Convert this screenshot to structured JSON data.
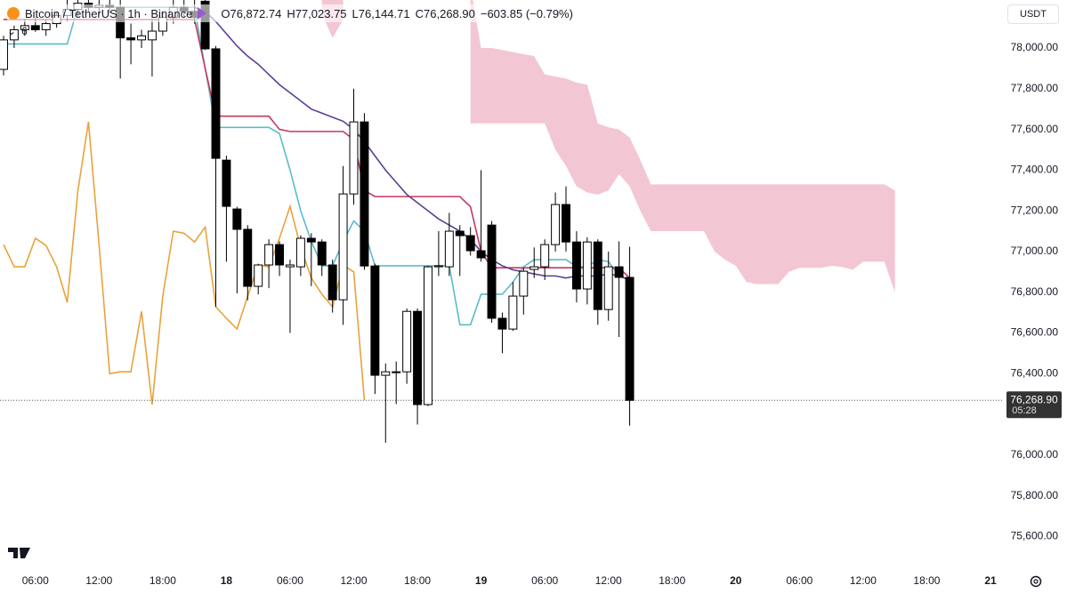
{
  "header": {
    "symbol": "Bitcoin / TetherUS · 1h · Binance",
    "open": "O76,872.74",
    "high": "H77,023.75",
    "low": "L76,144.71",
    "close": "C76,268.90",
    "change": "−603.85 (−0.79%)"
  },
  "toolbar": {
    "currency": "USDT",
    "indicator_count": "6"
  },
  "chart_data": {
    "type": "candlestick",
    "categories": [
      null,
      null,
      null,
      "06:00",
      null,
      null,
      null,
      null,
      null,
      "12:00",
      null,
      null,
      null,
      null,
      null,
      "18:00",
      null,
      null,
      null,
      null,
      null,
      "18",
      null,
      null,
      null,
      null,
      null,
      "06:00",
      null,
      null,
      null,
      null,
      null,
      "12:00",
      null,
      null,
      null,
      null,
      null,
      "18:00",
      null,
      null,
      null,
      null,
      null,
      "19",
      null,
      null,
      null,
      null,
      null,
      "06:00",
      null,
      null,
      null,
      null,
      null,
      "12:00",
      null,
      null,
      null,
      null,
      null,
      "18:00",
      null,
      null,
      null,
      null,
      null,
      "20",
      null,
      null,
      null,
      null,
      null,
      "06:00",
      null,
      null,
      null,
      null,
      null,
      "12:00",
      null,
      null,
      null,
      null,
      null,
      "18:00",
      null,
      null,
      null,
      null,
      null,
      "21"
    ],
    "open": [
      77895,
      78040,
      78090,
      78110,
      78090,
      78120,
      78160,
      78190,
      78220,
      78200,
      78210,
      78200,
      78050,
      78040,
      78040,
      78083,
      78150,
      78200,
      78180,
      78230,
      77996,
      77449,
      77209,
      77109,
      76829,
      76934,
      77034,
      76925,
      76925,
      77065,
      77047,
      76934,
      76763,
      77283,
      77637,
      76929,
      76392,
      76409,
      76409,
      76706,
      76248,
      76925,
      76925,
      77100,
      77078,
      77004,
      77130,
      76672,
      76619,
      76781,
      76912,
      76925,
      77034,
      77231,
      77047,
      76816,
      77047,
      76715,
      76925,
      76872.74,
      null,
      null,
      null,
      null,
      null,
      null,
      null,
      null,
      null,
      null,
      null,
      null,
      null,
      null,
      null,
      null,
      null,
      null,
      null,
      null,
      null,
      null,
      null,
      null,
      null,
      null,
      null,
      null,
      null,
      null,
      null,
      null,
      null,
      null
    ],
    "high": [
      78060,
      78110,
      78140,
      78150,
      78140,
      78180,
      78236,
      78236,
      78236,
      78236,
      78236,
      78236,
      78120,
      78090,
      78140,
      78180,
      78236,
      78236,
      78236,
      78236,
      78010,
      77471,
      77220,
      77130,
      76940,
      77060,
      77050,
      76960,
      77080,
      77090,
      77060,
      76960,
      77420,
      77800,
      77680,
      76940,
      76450,
      76460,
      76720,
      76720,
      76930,
      77100,
      77190,
      77130,
      77120,
      77400,
      77150,
      76700,
      76850,
      76920,
      77020,
      77060,
      77290,
      77320,
      77100,
      77070,
      77060,
      77000,
      77050,
      77023.75,
      null,
      null,
      null,
      null,
      null,
      null,
      null,
      null,
      null,
      null,
      null,
      null,
      null,
      null,
      null,
      null,
      null,
      null,
      null,
      null,
      null,
      null,
      null,
      null,
      null,
      null,
      null,
      null,
      null,
      null,
      null,
      null,
      null,
      null
    ],
    "low": [
      77865,
      78000,
      78060,
      78080,
      78060,
      78100,
      78130,
      78150,
      78180,
      78160,
      78170,
      77850,
      77920,
      78000,
      77860,
      78060,
      78120,
      78150,
      78120,
      77990,
      76728,
      76950,
      76794,
      76760,
      76790,
      76820,
      76880,
      76600,
      76880,
      76830,
      76880,
      76700,
      76640,
      77230,
      76910,
      76300,
      76060,
      76250,
      76350,
      76150,
      76240,
      76880,
      76880,
      76880,
      76980,
      76950,
      76650,
      76500,
      76610,
      76690,
      76870,
      76860,
      77000,
      77000,
      76750,
      76740,
      76640,
      76660,
      76580,
      76144.71,
      null,
      null,
      null,
      null,
      null,
      null,
      null,
      null,
      null,
      null,
      null,
      null,
      null,
      null,
      null,
      null,
      null,
      null,
      null,
      null,
      null,
      null,
      null,
      null,
      null,
      null,
      null,
      null,
      null,
      null,
      null,
      null,
      null,
      null
    ],
    "close": [
      78040,
      78090,
      78110,
      78090,
      78120,
      78160,
      78190,
      78220,
      78200,
      78210,
      78200,
      78050,
      78040,
      78060,
      78083,
      78150,
      78200,
      78180,
      78150,
      77996,
      77458,
      77222,
      77109,
      76829,
      76934,
      77034,
      76934,
      76934,
      77065,
      77047,
      76934,
      76763,
      77283,
      77637,
      76929,
      76392,
      76409,
      76409,
      76706,
      76248,
      76925,
      76930,
      77100,
      77078,
      77004,
      76969,
      76672,
      76619,
      76781,
      76903,
      76925,
      77034,
      77231,
      77047,
      76816,
      77047,
      76715,
      76925,
      76873,
      76268.9,
      null,
      null,
      null,
      null,
      null,
      null,
      null,
      null,
      null,
      null,
      null,
      null,
      null,
      null,
      null,
      null,
      null,
      null,
      null,
      null,
      null,
      null,
      null,
      null,
      null,
      null,
      null,
      null,
      null,
      null,
      null,
      null,
      null,
      null
    ],
    "up_color": "#ffffff",
    "down_color": "#000000",
    "lines": [
      {
        "color": "#5bbcc9",
        "values": [
          78020,
          78020,
          78020,
          78020,
          78020,
          78020,
          78020,
          78200,
          78200,
          78200,
          78200,
          78200,
          78200,
          78200,
          78200,
          78200,
          78200,
          78200,
          78200,
          77900,
          77610,
          77610,
          77610,
          77610,
          77610,
          77610,
          77580,
          77400,
          77200,
          77050,
          76930,
          76930,
          77050,
          77150,
          77100,
          76930,
          76930,
          76930,
          76930,
          76930,
          76930,
          76930,
          76930,
          76640,
          76640,
          76790,
          76790,
          76790,
          76850,
          76925,
          76960,
          76960,
          76960,
          76960,
          76925,
          76925,
          76960,
          76950,
          76880,
          76860,
          null,
          null,
          null,
          null,
          null,
          null,
          null,
          null,
          null,
          null,
          null,
          null,
          null,
          null,
          null,
          null,
          null,
          null,
          null,
          null,
          null,
          null,
          null,
          null,
          null,
          null,
          null,
          null,
          null,
          null,
          null,
          null,
          null,
          null
        ]
      },
      {
        "color": "#c8375d",
        "values": [
          78140,
          78140,
          78140,
          78140,
          78140,
          78140,
          78140,
          78140,
          78140,
          78140,
          78140,
          78140,
          78140,
          78140,
          78140,
          78140,
          78140,
          78140,
          78140,
          77900,
          77665,
          77665,
          77665,
          77665,
          77665,
          77665,
          77600,
          77590,
          77590,
          77590,
          77590,
          77590,
          77590,
          77550,
          77300,
          77270,
          77270,
          77270,
          77270,
          77270,
          77270,
          77270,
          77270,
          77270,
          77220,
          77000,
          76920,
          76920,
          76920,
          76920,
          76920,
          76920,
          76920,
          76920,
          76920,
          76920,
          76920,
          76920,
          76920,
          76870,
          null,
          null,
          null,
          null,
          null,
          null,
          null,
          null,
          null,
          null,
          null,
          null,
          null,
          null,
          null,
          null,
          null,
          null,
          null,
          null,
          null,
          null,
          null,
          null,
          null,
          null,
          null,
          null,
          null,
          null,
          null,
          null,
          null,
          null
        ]
      },
      {
        "color": "#5b3e96",
        "values": [
          null,
          null,
          null,
          null,
          null,
          null,
          null,
          null,
          null,
          null,
          null,
          null,
          null,
          null,
          null,
          null,
          null,
          null,
          78200,
          78180,
          78130,
          78070,
          78010,
          77960,
          77920,
          77870,
          77820,
          77780,
          77740,
          77700,
          77680,
          77660,
          77640,
          77600,
          77540,
          77470,
          77400,
          77340,
          77280,
          77240,
          77200,
          77160,
          77130,
          77100,
          77060,
          77000,
          76960,
          76930,
          76910,
          76900,
          76890,
          76880,
          76880,
          76870,
          76880,
          76880,
          76880,
          76890,
          76880,
          76860,
          null,
          null,
          null,
          null,
          null,
          null,
          null,
          null,
          null,
          null,
          null,
          null,
          null,
          null,
          null,
          null,
          null,
          null,
          null,
          null,
          null,
          null,
          null,
          null,
          null,
          null,
          null,
          null,
          null,
          null,
          null,
          null,
          null,
          null
        ]
      },
      {
        "color": "#e8a33d",
        "values": [
          77034,
          76925,
          76925,
          77065,
          77030,
          76925,
          76750,
          77297,
          77637,
          77034,
          76400,
          76409,
          76409,
          76706,
          76248,
          76780,
          77100,
          77090,
          77047,
          77120,
          76728,
          76672,
          76619,
          76780,
          76934,
          76925,
          77065,
          77222,
          77020,
          76870,
          76790,
          76728,
          76934,
          76900,
          76269,
          null,
          null,
          null,
          null,
          null,
          null,
          null,
          null,
          null,
          null,
          null,
          null,
          null,
          null,
          null,
          null,
          null,
          null,
          null,
          null,
          null,
          null,
          null,
          null,
          null,
          null,
          null,
          null,
          null,
          null,
          null,
          null,
          null,
          null,
          null,
          null,
          null,
          null,
          null,
          null,
          null,
          null,
          null,
          null,
          null,
          null,
          null,
          null,
          null,
          null,
          null,
          null,
          null,
          null,
          null,
          null,
          null,
          null,
          null
        ]
      }
    ],
    "cloud": {
      "color": "#f3c6d4",
      "upper": [
        null,
        null,
        null,
        null,
        null,
        null,
        null,
        null,
        null,
        null,
        null,
        null,
        null,
        null,
        null,
        null,
        null,
        null,
        null,
        null,
        null,
        null,
        null,
        null,
        null,
        null,
        null,
        null,
        null,
        null,
        78300,
        78300,
        78300,
        null,
        null,
        null,
        null,
        null,
        null,
        null,
        null,
        null,
        null,
        null,
        78300,
        78000,
        78000,
        77990,
        77980,
        77970,
        77960,
        77870,
        77860,
        77850,
        77830,
        77820,
        77630,
        77610,
        77600,
        77560,
        77450,
        77330,
        77330,
        77330,
        77330,
        77330,
        77330,
        77330,
        77330,
        77330,
        77330,
        77330,
        77330,
        77330,
        77330,
        77330,
        77330,
        77330,
        77330,
        77330,
        77330,
        77330,
        77330,
        77330,
        77300,
        null,
        null,
        null,
        null,
        null,
        null,
        null,
        null,
        null
      ],
      "lower": [
        null,
        null,
        null,
        null,
        null,
        null,
        null,
        null,
        null,
        null,
        null,
        null,
        null,
        null,
        null,
        null,
        null,
        null,
        null,
        null,
        null,
        null,
        null,
        null,
        null,
        null,
        null,
        null,
        null,
        null,
        78170,
        78050,
        78140,
        null,
        null,
        null,
        null,
        null,
        null,
        null,
        null,
        null,
        null,
        null,
        77630,
        77630,
        77630,
        77630,
        77630,
        77630,
        77630,
        77630,
        77500,
        77420,
        77320,
        77290,
        77280,
        77300,
        77380,
        77320,
        77200,
        77100,
        77100,
        77100,
        77100,
        77100,
        77100,
        77000,
        76960,
        76930,
        76850,
        76840,
        76840,
        76840,
        76900,
        76920,
        76920,
        76920,
        76930,
        76925,
        76910,
        76950,
        76950,
        76950,
        76800,
        null,
        null,
        null,
        null,
        null,
        null,
        null,
        null,
        null
      ]
    },
    "last_price": {
      "value": 76268.9,
      "label": "76,268.90"
    },
    "countdown": "05:28",
    "ylim": [
      75440,
      78236
    ],
    "yticks": [
      {
        "value": 75600,
        "label": "75,600.00"
      },
      {
        "value": 75800,
        "label": "75,800.00"
      },
      {
        "value": 76000,
        "label": "76,000.00"
      },
      {
        "value": 76200,
        "label": "76,200.00"
      },
      {
        "value": 76400,
        "label": "76,400.00"
      },
      {
        "value": 76600,
        "label": "76,600.00"
      },
      {
        "value": 76800,
        "label": "76,800.00"
      },
      {
        "value": 77000,
        "label": "77,000.00"
      },
      {
        "value": 77200,
        "label": "77,200.00"
      },
      {
        "value": 77400,
        "label": "77,400.00"
      },
      {
        "value": 77600,
        "label": "77,600.00"
      },
      {
        "value": 77800,
        "label": "77,800.00"
      },
      {
        "value": 78000,
        "label": "78,000.00"
      }
    ]
  }
}
